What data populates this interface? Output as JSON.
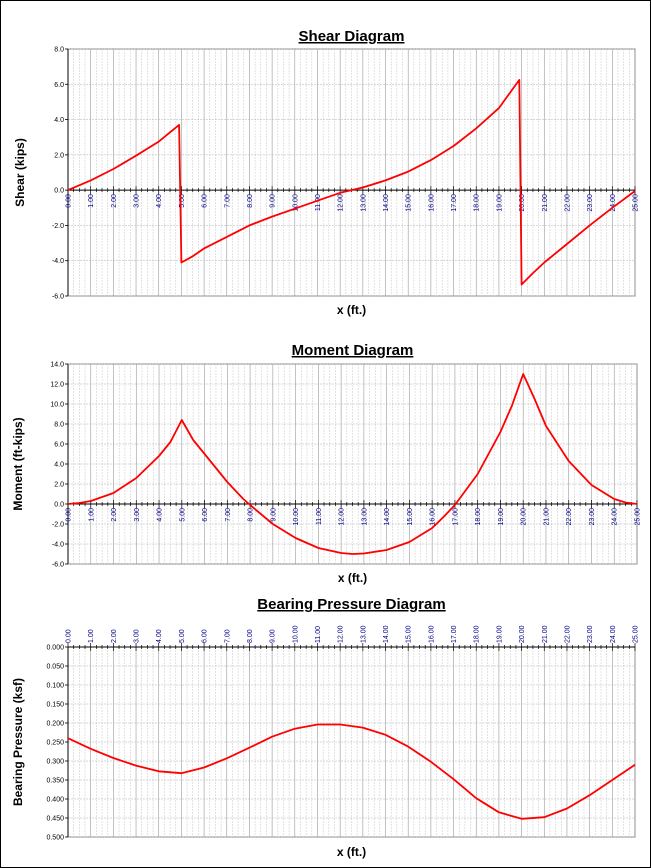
{
  "chart_data": [
    {
      "type": "line",
      "title": "Shear Diagram",
      "xlabel": "x (ft.)",
      "ylabel": "Shear (kips)",
      "xlim": [
        0,
        25
      ],
      "ylim": [
        -6,
        8
      ],
      "grid": true,
      "yticks": [
        "8.0",
        "6.0",
        "4.0",
        "2.0",
        "0.0",
        "-2.0",
        "-4.0",
        "-6.0"
      ],
      "xticks": [
        "0.00",
        "1.00",
        "2.00",
        "3.00",
        "4.00",
        "5.00",
        "6.00",
        "7.00",
        "8.00",
        "9.00",
        "10.00",
        "11.00",
        "12.00",
        "13.00",
        "14.00",
        "15.00",
        "16.00",
        "17.00",
        "18.00",
        "19.00",
        "20.00",
        "21.00",
        "22.00",
        "23.00",
        "24.00",
        "25.00"
      ],
      "series_color": "#ff0000",
      "x": [
        0,
        1,
        2,
        3,
        4,
        4.9,
        5.0,
        5.5,
        6,
        7,
        8,
        9,
        10,
        11,
        12,
        12.5,
        13,
        14,
        15,
        16,
        17,
        18,
        19,
        19.9,
        20.0,
        20.5,
        21,
        22,
        23,
        24,
        25
      ],
      "y": [
        0,
        0.55,
        1.2,
        1.95,
        2.75,
        3.7,
        -4.1,
        -3.75,
        -3.3,
        -2.65,
        -2.0,
        -1.5,
        -1.05,
        -0.6,
        -0.15,
        0.0,
        0.15,
        0.55,
        1.05,
        1.7,
        2.5,
        3.5,
        4.65,
        6.25,
        -5.35,
        -4.7,
        -4.1,
        -3.05,
        -2.0,
        -1.0,
        -0.05
      ]
    },
    {
      "type": "line",
      "title": "Moment Diagram",
      "xlabel": "x (ft.)",
      "ylabel": "Moment (ft-kips)",
      "xlim": [
        0,
        25
      ],
      "ylim": [
        -6,
        14
      ],
      "grid": true,
      "yticks": [
        "14.0",
        "12.0",
        "10.0",
        "8.0",
        "6.0",
        "4.0",
        "2.0",
        "0.0",
        "-2.0",
        "-4.0",
        "-6.0"
      ],
      "xticks": [
        "0.00",
        "1.00",
        "2.00",
        "3.00",
        "4.00",
        "5.00",
        "6.00",
        "7.00",
        "8.00",
        "9.00",
        "10.00",
        "11.00",
        "12.00",
        "13.00",
        "14.00",
        "15.00",
        "16.00",
        "17.00",
        "18.00",
        "19.00",
        "20.00",
        "21.00",
        "22.00",
        "23.00",
        "24.00",
        "25.00"
      ],
      "series_color": "#ff0000",
      "x": [
        0,
        0.5,
        1,
        2,
        3,
        4,
        4.5,
        5,
        5.5,
        6,
        7,
        7.7,
        8,
        9,
        10,
        11,
        12,
        12.5,
        13,
        14,
        15,
        16,
        16.5,
        17,
        18,
        19,
        19.5,
        20,
        20.5,
        21,
        22,
        23,
        24,
        24.5,
        25
      ],
      "y": [
        0,
        0.1,
        0.3,
        1.1,
        2.6,
        4.8,
        6.2,
        8.4,
        6.4,
        5.0,
        2.2,
        0.5,
        -0.1,
        -2.0,
        -3.4,
        -4.4,
        -4.9,
        -5.0,
        -4.95,
        -4.6,
        -3.8,
        -2.4,
        -1.3,
        -0.1,
        3.0,
        7.2,
        9.8,
        13.0,
        10.5,
        7.8,
        4.3,
        1.9,
        0.5,
        0.15,
        0.0
      ]
    },
    {
      "type": "line",
      "title": "Bearing Pressure Diagram",
      "xlabel": "x (ft.)",
      "ylabel": "Bearing Pressure  (ksf)",
      "xlim": [
        0,
        25
      ],
      "ylim": [
        0.5,
        0.0
      ],
      "grid": true,
      "yticks": [
        "0.000",
        "0.050",
        "0.100",
        "0.150",
        "0.200",
        "0.250",
        "0.300",
        "0.350",
        "0.400",
        "0.450",
        "0.500"
      ],
      "xticks": [
        "0.00",
        "1.00",
        "2.00",
        "3.00",
        "4.00",
        "5.00",
        "6.00",
        "7.00",
        "8.00",
        "9.00",
        "10.00",
        "11.00",
        "12.00",
        "13.00",
        "14.00",
        "15.00",
        "16.00",
        "17.00",
        "18.00",
        "19.00",
        "20.00",
        "21.00",
        "22.00",
        "23.00",
        "24.00",
        "25.00"
      ],
      "series_color": "#ff0000",
      "x": [
        0,
        1,
        2,
        3,
        4,
        5,
        6,
        7,
        8,
        9,
        10,
        11,
        12,
        13,
        14,
        15,
        16,
        17,
        18,
        19,
        20,
        21,
        22,
        23,
        24,
        25
      ],
      "y": [
        0.24,
        0.268,
        0.292,
        0.312,
        0.327,
        0.332,
        0.317,
        0.293,
        0.265,
        0.236,
        0.215,
        0.204,
        0.204,
        0.212,
        0.231,
        0.262,
        0.302,
        0.348,
        0.398,
        0.435,
        0.452,
        0.448,
        0.425,
        0.39,
        0.35,
        0.31
      ]
    }
  ]
}
